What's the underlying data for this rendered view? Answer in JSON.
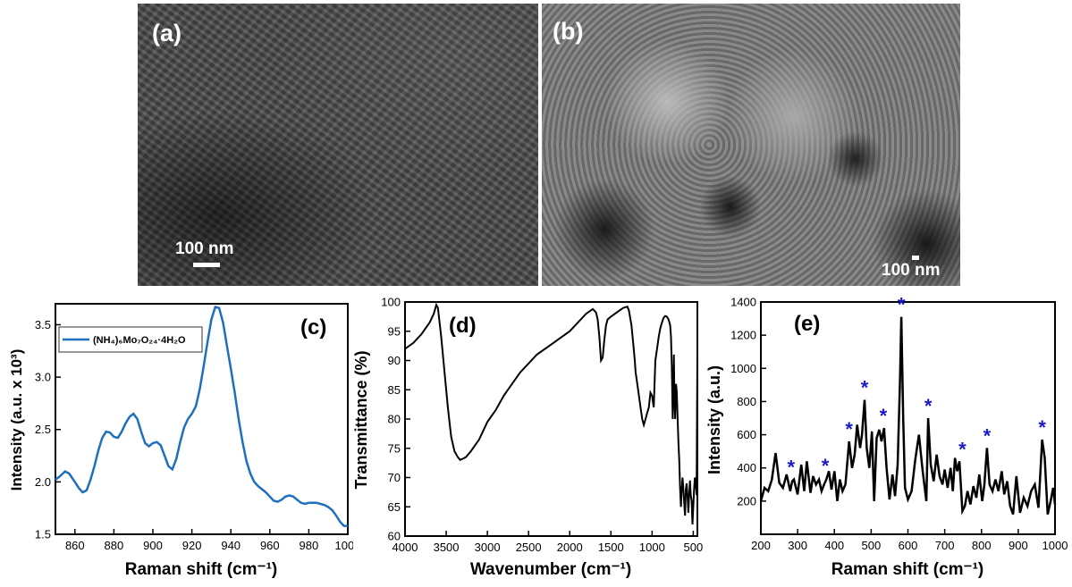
{
  "panels": {
    "a": {
      "label": "(a)",
      "scale_bar": "100 nm"
    },
    "b": {
      "label": "(b)",
      "scale_bar": "100 nm"
    }
  },
  "chart_data": [
    {
      "id": "c",
      "type": "line",
      "panel_label": "(c)",
      "xlabel": "Raman shift (cm⁻¹)",
      "ylabel": "Intensity (a.u. x 10³)",
      "xlim": [
        850,
        1000
      ],
      "ylim": [
        1.5,
        3.7
      ],
      "xticks": [
        860,
        880,
        900,
        920,
        940,
        960,
        980,
        1000
      ],
      "yticks": [
        1.5,
        2.0,
        2.5,
        3.0,
        3.5
      ],
      "legend": "(NH₄)₆Mo₇O₂₄·4H₂O",
      "legend_position": "top-left",
      "color": "#1f6fbf",
      "series": [
        {
          "name": "(NH₄)₆Mo₇O₂₄·4H₂O",
          "x": [
            850,
            852,
            855,
            857,
            860,
            862,
            864,
            866,
            868,
            870,
            872,
            874,
            876,
            878,
            880,
            882,
            884,
            886,
            888,
            890,
            892,
            894,
            896,
            898,
            900,
            902,
            904,
            906,
            908,
            910,
            912,
            914,
            916,
            918,
            920,
            922,
            924,
            926,
            928,
            930,
            932,
            934,
            936,
            938,
            940,
            942,
            944,
            946,
            948,
            950,
            952,
            954,
            956,
            958,
            960,
            962,
            964,
            966,
            968,
            970,
            972,
            974,
            976,
            978,
            980,
            982,
            984,
            986,
            988,
            990,
            992,
            994,
            996,
            998,
            1000
          ],
          "y": [
            2.02,
            2.05,
            2.1,
            2.08,
            2.0,
            1.94,
            1.9,
            1.92,
            2.02,
            2.15,
            2.3,
            2.42,
            2.48,
            2.47,
            2.43,
            2.42,
            2.48,
            2.56,
            2.62,
            2.65,
            2.6,
            2.48,
            2.37,
            2.34,
            2.37,
            2.38,
            2.35,
            2.25,
            2.15,
            2.12,
            2.22,
            2.38,
            2.52,
            2.6,
            2.65,
            2.72,
            2.88,
            3.1,
            3.33,
            3.55,
            3.67,
            3.66,
            3.52,
            3.3,
            3.08,
            2.85,
            2.6,
            2.38,
            2.2,
            2.08,
            2.0,
            1.96,
            1.93,
            1.9,
            1.86,
            1.82,
            1.81,
            1.83,
            1.86,
            1.87,
            1.86,
            1.83,
            1.8,
            1.79,
            1.8,
            1.8,
            1.8,
            1.79,
            1.78,
            1.76,
            1.73,
            1.68,
            1.62,
            1.58,
            1.58
          ]
        }
      ]
    },
    {
      "id": "d",
      "type": "line",
      "panel_label": "(d)",
      "xlabel": "Wavenumber (cm⁻¹)",
      "ylabel": "Transmittance (%)",
      "xlim": [
        4000,
        450
      ],
      "ylim": [
        60,
        100
      ],
      "xticks": [
        4000,
        3500,
        3000,
        2500,
        2000,
        1500,
        1000,
        500
      ],
      "yticks": [
        60,
        65,
        70,
        75,
        80,
        85,
        90,
        95,
        100
      ],
      "color": "#000000",
      "series": [
        {
          "name": "FTIR",
          "x": [
            4000,
            3900,
            3800,
            3700,
            3650,
            3620,
            3600,
            3560,
            3520,
            3480,
            3440,
            3400,
            3360,
            3330,
            3300,
            3260,
            3200,
            3100,
            3000,
            2950,
            2900,
            2800,
            2700,
            2600,
            2500,
            2400,
            2300,
            2200,
            2100,
            2000,
            1900,
            1800,
            1720,
            1700,
            1680,
            1660,
            1640,
            1620,
            1600,
            1580,
            1560,
            1540,
            1500,
            1450,
            1400,
            1350,
            1300,
            1280,
            1250,
            1230,
            1210,
            1200,
            1180,
            1160,
            1140,
            1120,
            1100,
            1080,
            1060,
            1040,
            1020,
            1000,
            980,
            960,
            940,
            920,
            900,
            880,
            860,
            840,
            820,
            800,
            780,
            770,
            760,
            750,
            740,
            735,
            730,
            720,
            710,
            700,
            690,
            680,
            670,
            660,
            650,
            640,
            630,
            620,
            600,
            590,
            580,
            570,
            560,
            550,
            540,
            530,
            520,
            510,
            500,
            490,
            480,
            470,
            460,
            450
          ],
          "y": [
            92,
            93,
            94.5,
            96.5,
            98,
            99.5,
            99,
            94,
            88,
            82,
            77,
            74.5,
            73.5,
            73,
            73.2,
            73.5,
            74.5,
            76.5,
            79.5,
            80.5,
            81.5,
            84,
            86,
            88,
            89.5,
            91,
            92,
            93,
            94,
            95,
            96.5,
            98,
            98.8,
            98.5,
            98.2,
            97,
            94,
            90,
            90.5,
            93.5,
            96,
            97,
            97.5,
            98,
            98.5,
            99,
            99.2,
            98.5,
            96,
            93,
            90,
            88,
            86,
            84,
            82,
            80,
            79,
            80,
            81,
            82,
            84.5,
            84,
            82,
            90,
            92,
            94,
            95.5,
            96.5,
            97.3,
            97.6,
            97.5,
            97,
            96,
            94,
            89,
            80,
            86,
            91,
            85,
            80,
            86,
            84.5,
            80,
            76,
            73,
            68,
            65,
            68,
            70,
            68,
            63.5,
            68,
            69,
            67,
            64,
            67,
            69.5,
            67,
            66,
            62,
            65,
            68,
            70,
            69,
            67,
            91
          ]
        }
      ]
    },
    {
      "id": "e",
      "type": "line",
      "panel_label": "(e)",
      "xlabel": "Raman shift (cm⁻¹)",
      "ylabel": "Intensity (a.u.)",
      "xlim": [
        200,
        1000
      ],
      "ylim": [
        0,
        1400
      ],
      "xticks": [
        200,
        300,
        400,
        500,
        600,
        700,
        800,
        900,
        1000
      ],
      "yticks": [
        200,
        400,
        600,
        800,
        1000,
        1200,
        1400
      ],
      "color": "#000000",
      "marker_color": "#1a1ac8",
      "marker_symbol": "*",
      "marked_peaks": [
        {
          "x": 282,
          "y": 330
        },
        {
          "x": 375,
          "y": 340
        },
        {
          "x": 440,
          "y": 560
        },
        {
          "x": 482,
          "y": 810
        },
        {
          "x": 533,
          "y": 640
        },
        {
          "x": 582,
          "y": 1310
        },
        {
          "x": 655,
          "y": 700
        },
        {
          "x": 748,
          "y": 440
        },
        {
          "x": 815,
          "y": 520
        },
        {
          "x": 965,
          "y": 570
        }
      ],
      "series": [
        {
          "name": "Raman",
          "x": [
            200,
            210,
            220,
            230,
            240,
            250,
            260,
            270,
            280,
            285,
            290,
            300,
            310,
            318,
            325,
            335,
            342,
            350,
            358,
            365,
            372,
            378,
            385,
            392,
            400,
            408,
            415,
            422,
            430,
            440,
            448,
            455,
            462,
            470,
            475,
            482,
            488,
            495,
            502,
            508,
            515,
            522,
            528,
            535,
            542,
            550,
            558,
            565,
            572,
            578,
            582,
            587,
            592,
            600,
            610,
            620,
            630,
            640,
            650,
            655,
            662,
            670,
            678,
            686,
            694,
            700,
            708,
            716,
            722,
            728,
            734,
            740,
            748,
            755,
            762,
            770,
            778,
            786,
            794,
            802,
            808,
            815,
            822,
            830,
            838,
            846,
            855,
            862,
            870,
            878,
            886,
            895,
            905,
            915,
            925,
            935,
            945,
            955,
            965,
            972,
            980,
            988,
            995,
            1000
          ],
          "y": [
            200,
            280,
            260,
            330,
            490,
            310,
            280,
            360,
            260,
            320,
            330,
            240,
            420,
            260,
            440,
            250,
            350,
            300,
            330,
            260,
            300,
            330,
            380,
            270,
            380,
            200,
            330,
            260,
            300,
            560,
            400,
            480,
            660,
            520,
            600,
            810,
            520,
            400,
            620,
            200,
            580,
            630,
            560,
            640,
            400,
            210,
            360,
            230,
            420,
            900,
            1310,
            700,
            280,
            210,
            260,
            450,
            600,
            380,
            200,
            700,
            420,
            320,
            480,
            350,
            300,
            390,
            280,
            400,
            260,
            460,
            380,
            440,
            140,
            170,
            260,
            180,
            290,
            220,
            360,
            200,
            300,
            520,
            300,
            260,
            330,
            260,
            380,
            240,
            320,
            170,
            120,
            350,
            130,
            220,
            170,
            260,
            300,
            160,
            570,
            460,
            120,
            200,
            280,
            180
          ]
        }
      ]
    }
  ]
}
